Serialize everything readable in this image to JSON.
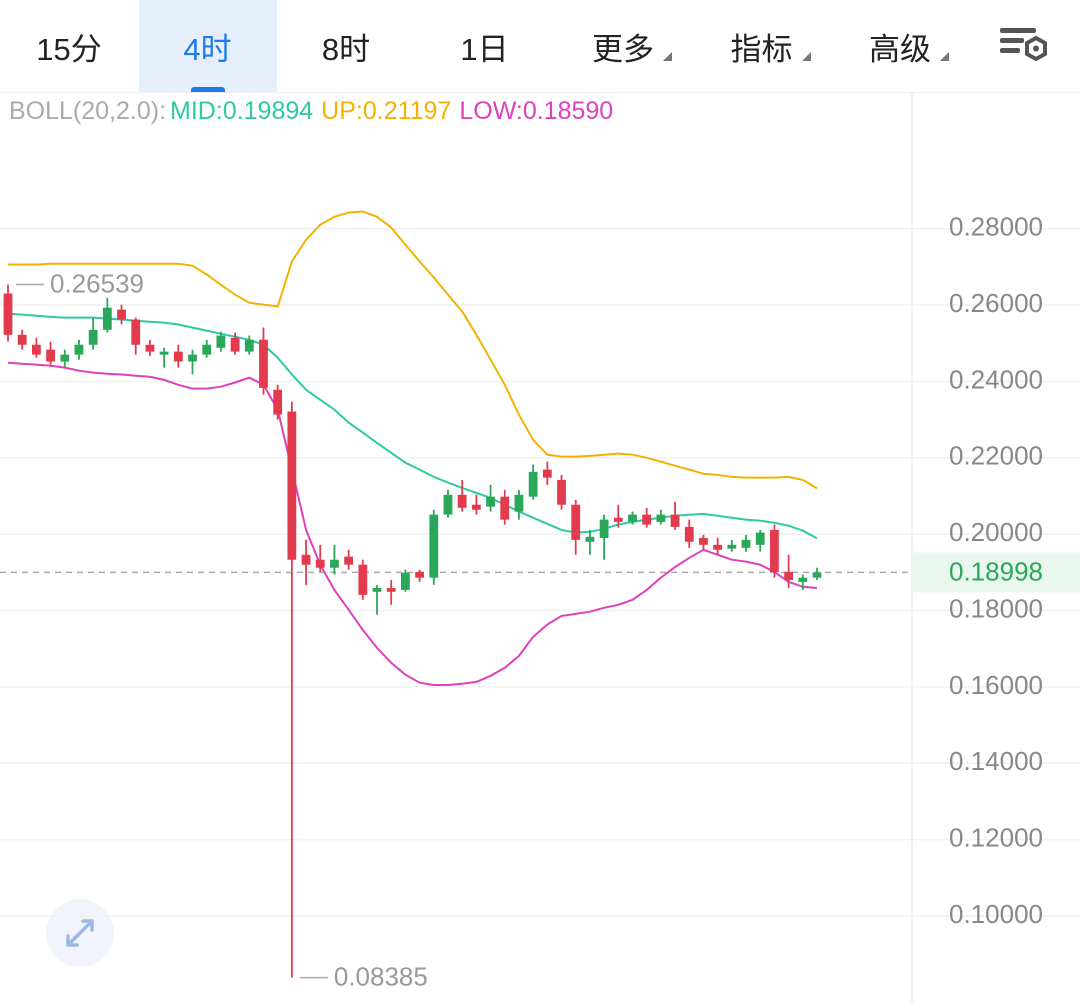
{
  "tabs": [
    {
      "label": "15分",
      "dropdown": false
    },
    {
      "label": "4时",
      "dropdown": false
    },
    {
      "label": "8时",
      "dropdown": false
    },
    {
      "label": "1日",
      "dropdown": false
    },
    {
      "label": "更多",
      "dropdown": true
    },
    {
      "label": "指标",
      "dropdown": true
    },
    {
      "label": "高级",
      "dropdown": true
    }
  ],
  "active_tab": 1,
  "chart_data": {
    "type": "candlestick",
    "indicator": "BOLL(20,2.0):",
    "ylim": [
      0.078,
      0.315
    ],
    "yticks": [
      {
        "value": 0.28,
        "label": "0.28000"
      },
      {
        "value": 0.26,
        "label": "0.26000"
      },
      {
        "value": 0.24,
        "label": "0.24000"
      },
      {
        "value": 0.22,
        "label": "0.22000"
      },
      {
        "value": 0.2,
        "label": "0.20000"
      },
      {
        "value": 0.18,
        "label": "0.18000"
      },
      {
        "value": 0.16,
        "label": "0.16000"
      },
      {
        "value": 0.14,
        "label": "0.14000"
      },
      {
        "value": 0.12,
        "label": "0.12000"
      },
      {
        "value": 0.1,
        "label": "0.10000"
      }
    ],
    "grid": true,
    "up_color": "#2aa85a",
    "down_color": "#e23b4e",
    "max_label": "0.26539",
    "min_label": "0.08385",
    "last_price": {
      "value": 0.18998,
      "label": "0.18998"
    },
    "open": [
      0.263,
      0.2522,
      0.2496,
      0.2483,
      0.2452,
      0.247,
      0.2496,
      0.2535,
      0.2588,
      0.2562,
      0.2496,
      0.247,
      0.2478,
      0.2452,
      0.247,
      0.2488,
      0.2514,
      0.2478,
      0.2509,
      0.2378,
      0.2321,
      0.1946,
      0.1933,
      0.1912,
      0.1941,
      0.192,
      0.1849,
      0.1859,
      0.1854,
      0.1901,
      0.1886,
      0.2051,
      0.2103,
      0.2077,
      0.2072,
      0.2098,
      0.2059,
      0.2098,
      0.2169,
      0.2142,
      0.2077,
      0.198,
      0.199,
      0.2043,
      0.2032,
      0.2051,
      0.2032,
      0.2051,
      0.2019,
      0.199,
      0.1972,
      0.1962,
      0.1964,
      0.1972,
      0.2011,
      0.1901,
      0.1875,
      0.1886
    ],
    "high": [
      0.26539,
      0.2535,
      0.2514,
      0.2504,
      0.2483,
      0.2509,
      0.2567,
      0.2619,
      0.2601,
      0.2567,
      0.2509,
      0.2488,
      0.2496,
      0.2483,
      0.2509,
      0.253,
      0.2528,
      0.252,
      0.2541,
      0.2391,
      0.2347,
      0.1985,
      0.1972,
      0.1972,
      0.1959,
      0.1933,
      0.1867,
      0.188,
      0.1907,
      0.1907,
      0.2064,
      0.2116,
      0.2142,
      0.2103,
      0.2129,
      0.2116,
      0.2116,
      0.2182,
      0.219,
      0.2155,
      0.209,
      0.2011,
      0.2051,
      0.2077,
      0.2059,
      0.2069,
      0.2064,
      0.2085,
      0.2038,
      0.1998,
      0.199,
      0.1985,
      0.1998,
      0.2011,
      0.2025,
      0.1946,
      0.1894,
      0.1912
    ],
    "low": [
      0.2504,
      0.2483,
      0.2462,
      0.2444,
      0.2436,
      0.2457,
      0.2483,
      0.2528,
      0.2549,
      0.247,
      0.2467,
      0.2436,
      0.2436,
      0.2418,
      0.2462,
      0.2478,
      0.247,
      0.247,
      0.2365,
      0.23,
      0.08385,
      0.1867,
      0.1901,
      0.1894,
      0.1907,
      0.1828,
      0.1789,
      0.1815,
      0.1849,
      0.1875,
      0.1867,
      0.2043,
      0.2059,
      0.2051,
      0.2059,
      0.2025,
      0.2038,
      0.209,
      0.2129,
      0.2064,
      0.1946,
      0.1946,
      0.1933,
      0.2017,
      0.2025,
      0.2017,
      0.2025,
      0.2011,
      0.1964,
      0.1959,
      0.1946,
      0.1954,
      0.1954,
      0.1954,
      0.1886,
      0.1859,
      0.1854,
      0.188
    ],
    "close": [
      0.2522,
      0.2496,
      0.247,
      0.2452,
      0.247,
      0.2496,
      0.2535,
      0.2593,
      0.2562,
      0.2496,
      0.2478,
      0.2478,
      0.2452,
      0.247,
      0.2496,
      0.252,
      0.2478,
      0.2509,
      0.2383,
      0.2313,
      0.1933,
      0.192,
      0.1912,
      0.1933,
      0.192,
      0.1841,
      0.1859,
      0.1849,
      0.1899,
      0.1886,
      0.2051,
      0.2103,
      0.2069,
      0.2064,
      0.2098,
      0.2038,
      0.2103,
      0.2163,
      0.2148,
      0.2077,
      0.1985,
      0.1993,
      0.2038,
      0.2032,
      0.2051,
      0.2025,
      0.2051,
      0.2019,
      0.198,
      0.1972,
      0.1959,
      0.1972,
      0.1985,
      0.2004,
      0.1901,
      0.188,
      0.1886,
      0.18998
    ],
    "series": [
      {
        "name": "MID:0.19894",
        "color": "#2fc9a3",
        "values": [
          0.2577,
          0.2575,
          0.2572,
          0.2569,
          0.2567,
          0.2567,
          0.2567,
          0.2564,
          0.2562,
          0.2559,
          0.2556,
          0.2554,
          0.2549,
          0.2541,
          0.2533,
          0.2525,
          0.2517,
          0.2509,
          0.2496,
          0.2462,
          0.2418,
          0.2378,
          0.2352,
          0.2326,
          0.2292,
          0.2266,
          0.2239,
          0.2213,
          0.2187,
          0.2169,
          0.215,
          0.2135,
          0.2121,
          0.2108,
          0.2095,
          0.2077,
          0.2059,
          0.2043,
          0.2027,
          0.2011,
          0.2004,
          0.2006,
          0.2014,
          0.2025,
          0.2032,
          0.2038,
          0.2043,
          0.2048,
          0.2051,
          0.2053,
          0.2048,
          0.2043,
          0.2038,
          0.2035,
          0.203,
          0.2022,
          0.2009,
          0.19894
        ]
      },
      {
        "name": "UP:0.21197",
        "color": "#f2b300",
        "values": [
          0.2706,
          0.2706,
          0.2706,
          0.2708,
          0.2708,
          0.2708,
          0.2708,
          0.2708,
          0.2708,
          0.2708,
          0.2708,
          0.2708,
          0.2708,
          0.2703,
          0.268,
          0.2653,
          0.2627,
          0.2606,
          0.2601,
          0.2596,
          0.2714,
          0.2771,
          0.281,
          0.2831,
          0.2842,
          0.2845,
          0.2831,
          0.2803,
          0.2758,
          0.2714,
          0.2672,
          0.2627,
          0.2583,
          0.2522,
          0.2457,
          0.2391,
          0.2313,
          0.2247,
          0.2208,
          0.2203,
          0.2203,
          0.2205,
          0.2208,
          0.2211,
          0.2208,
          0.22,
          0.219,
          0.2179,
          0.2169,
          0.2158,
          0.2155,
          0.215,
          0.2148,
          0.2148,
          0.2148,
          0.215,
          0.2142,
          0.21197
        ]
      },
      {
        "name": "LOW:0.18590",
        "color": "#e040bd",
        "values": [
          0.2449,
          0.2446,
          0.2444,
          0.2441,
          0.2436,
          0.2428,
          0.2423,
          0.242,
          0.2418,
          0.2415,
          0.2412,
          0.2404,
          0.2391,
          0.2381,
          0.2381,
          0.2386,
          0.2397,
          0.241,
          0.2391,
          0.2326,
          0.2169,
          0.2011,
          0.192,
          0.1854,
          0.1802,
          0.1749,
          0.1702,
          0.1663,
          0.1632,
          0.1611,
          0.1605,
          0.1605,
          0.1608,
          0.1613,
          0.1629,
          0.165,
          0.1681,
          0.1731,
          0.1763,
          0.1786,
          0.1791,
          0.1797,
          0.1807,
          0.1815,
          0.1828,
          0.1854,
          0.1886,
          0.1914,
          0.1938,
          0.1959,
          0.1946,
          0.1933,
          0.1928,
          0.192,
          0.1901,
          0.1875,
          0.1862,
          0.1859
        ]
      }
    ]
  }
}
